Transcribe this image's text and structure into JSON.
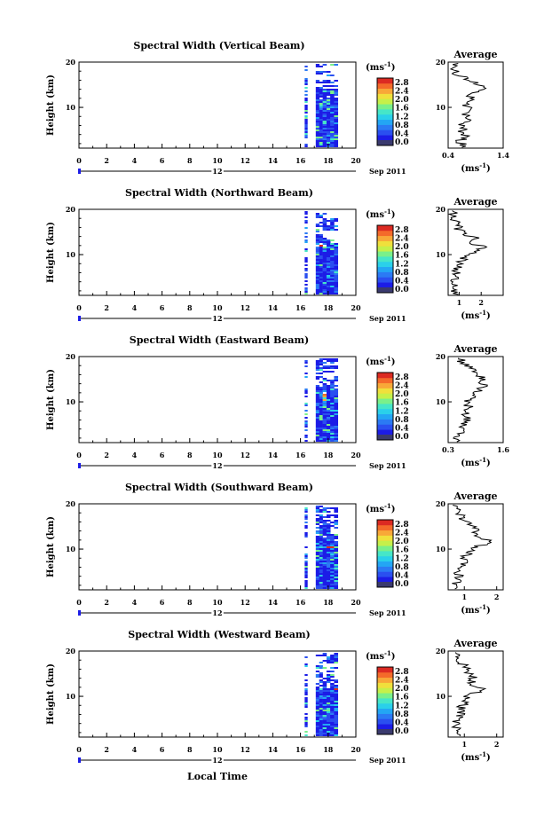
{
  "figure": {
    "xlabel": "Local Time",
    "date_left": "12",
    "date_right": "Sep 2011",
    "avg_title": "Average",
    "unit_label": "(ms",
    "unit_sup": "-1",
    "unit_close": ")",
    "colors": {
      "bottom": "#3a3a6e",
      "colormap": [
        "#1c1ce6",
        "#2a4ff0",
        "#2b7af4",
        "#23a6f4",
        "#2ad0ea",
        "#46e6c8",
        "#7af08a",
        "#c6f04a",
        "#f0e03c",
        "#f8a838",
        "#f46a2a",
        "#dc2a22"
      ]
    }
  },
  "chart_data": [
    {
      "type": "heatmap",
      "title": "Spectral Width (Vertical Beam)",
      "ylabel": "Height (km)",
      "xlim": [
        0,
        20
      ],
      "ylim": [
        1,
        20
      ],
      "xticks": [
        "0",
        "2",
        "4",
        "6",
        "8",
        "10",
        "12",
        "14",
        "16",
        "18",
        "20"
      ],
      "yticks": [
        "20",
        "10"
      ],
      "colorbar_ticks": [
        "2.8",
        "2.4",
        "2.0",
        "1.6",
        "1.2",
        "0.8",
        "0.4",
        "0.0"
      ],
      "data_columns": [
        [
          16.3,
          16.5
        ],
        [
          17.1,
          17.6
        ],
        [
          17.6,
          18.7
        ]
      ],
      "avg_xlim": [
        0.4,
        1.4
      ],
      "avg_xticks": [
        "0.4",
        "1.4"
      ],
      "avg_yticks": [
        "20",
        "10"
      ],
      "average": [
        [
          0.72,
          1.5
        ],
        [
          0.58,
          2.5
        ],
        [
          0.78,
          3.5
        ],
        [
          0.62,
          4.5
        ],
        [
          0.7,
          5.5
        ],
        [
          0.66,
          6.5
        ],
        [
          0.82,
          7.5
        ],
        [
          0.7,
          8.5
        ],
        [
          0.78,
          9.5
        ],
        [
          0.74,
          10.5
        ],
        [
          0.88,
          11.5
        ],
        [
          0.82,
          12.5
        ],
        [
          0.95,
          13.5
        ],
        [
          1.05,
          14.5
        ],
        [
          0.9,
          15.5
        ],
        [
          0.7,
          16.5
        ],
        [
          0.55,
          17.5
        ],
        [
          0.5,
          18.5
        ],
        [
          0.5,
          19.5
        ]
      ]
    },
    {
      "type": "heatmap",
      "title": "Spectral Width (Northward Beam)",
      "ylabel": "Height (km)",
      "xlim": [
        0,
        20
      ],
      "ylim": [
        1,
        20
      ],
      "xticks": [
        "0",
        "2",
        "4",
        "6",
        "8",
        "10",
        "12",
        "14",
        "16",
        "18",
        "20"
      ],
      "yticks": [
        "20",
        "10"
      ],
      "colorbar_ticks": [
        "2.8",
        "2.4",
        "2.0",
        "1.6",
        "1.2",
        "0.8",
        "0.4",
        "0.0"
      ],
      "data_columns": [
        [
          16.3,
          16.5
        ],
        [
          17.1,
          17.6
        ],
        [
          17.6,
          18.7
        ]
      ],
      "avg_xlim": [
        0.5,
        3.0
      ],
      "avg_xticks": [
        "1",
        "2"
      ],
      "avg_yticks": [
        "20",
        "10"
      ],
      "average": [
        [
          0.8,
          1.5
        ],
        [
          0.75,
          2.5
        ],
        [
          0.85,
          3.5
        ],
        [
          0.8,
          4.5
        ],
        [
          0.9,
          5.5
        ],
        [
          0.85,
          6.5
        ],
        [
          1.0,
          7.5
        ],
        [
          1.1,
          8.5
        ],
        [
          1.3,
          9.5
        ],
        [
          1.6,
          10.5
        ],
        [
          2.2,
          11.5
        ],
        [
          1.6,
          12.5
        ],
        [
          1.8,
          13.5
        ],
        [
          1.3,
          14.5
        ],
        [
          1.0,
          15.5
        ],
        [
          0.9,
          16.5
        ],
        [
          0.8,
          17.5
        ],
        [
          0.7,
          18.5
        ],
        [
          0.7,
          19.5
        ]
      ]
    },
    {
      "type": "heatmap",
      "title": "Spectral Width (Eastward Beam)",
      "ylabel": "Height (km)",
      "xlim": [
        0,
        20
      ],
      "ylim": [
        1,
        20
      ],
      "xticks": [
        "0",
        "2",
        "4",
        "6",
        "8",
        "10",
        "12",
        "14",
        "16",
        "18",
        "20"
      ],
      "yticks": [
        "20",
        "10"
      ],
      "colorbar_ticks": [
        "2.8",
        "2.4",
        "2.0",
        "1.6",
        "1.2",
        "0.8",
        "0.4",
        "0.0"
      ],
      "data_columns": [
        [
          16.3,
          16.5
        ],
        [
          17.1,
          17.6
        ],
        [
          17.6,
          18.7
        ]
      ],
      "avg_xlim": [
        0.3,
        1.6
      ],
      "avg_xticks": [
        "0.3",
        "1.6"
      ],
      "avg_yticks": [
        "20",
        "10"
      ],
      "average": [
        [
          0.5,
          1.5
        ],
        [
          0.55,
          2.5
        ],
        [
          0.62,
          3.5
        ],
        [
          0.6,
          4.5
        ],
        [
          0.7,
          5.5
        ],
        [
          0.75,
          6.5
        ],
        [
          0.68,
          7.5
        ],
        [
          0.8,
          8.5
        ],
        [
          0.74,
          9.5
        ],
        [
          0.8,
          10.5
        ],
        [
          0.9,
          11.5
        ],
        [
          1.0,
          12.5
        ],
        [
          1.15,
          13.5
        ],
        [
          1.05,
          14.5
        ],
        [
          1.1,
          15.5
        ],
        [
          0.9,
          16.5
        ],
        [
          0.8,
          17.5
        ],
        [
          0.65,
          18.5
        ],
        [
          0.6,
          19.5
        ]
      ]
    },
    {
      "type": "heatmap",
      "title": "Spectral Width (Southward Beam)",
      "ylabel": "Height (km)",
      "xlim": [
        0,
        20
      ],
      "ylim": [
        1,
        20
      ],
      "xticks": [
        "0",
        "2",
        "4",
        "6",
        "8",
        "10",
        "12",
        "14",
        "16",
        "18",
        "20"
      ],
      "yticks": [
        "20",
        "10"
      ],
      "colorbar_ticks": [
        "2.8",
        "2.4",
        "2.0",
        "1.6",
        "1.2",
        "0.8",
        "0.4",
        "0.0"
      ],
      "data_columns": [
        [
          16.3,
          16.5
        ],
        [
          17.1,
          17.6
        ],
        [
          17.6,
          18.7
        ]
      ],
      "avg_xlim": [
        0.5,
        2.2
      ],
      "avg_xticks": [
        "1",
        "2"
      ],
      "avg_yticks": [
        "20",
        "10"
      ],
      "average": [
        [
          0.75,
          1.5
        ],
        [
          0.72,
          2.5
        ],
        [
          0.85,
          3.5
        ],
        [
          0.8,
          4.5
        ],
        [
          0.85,
          5.5
        ],
        [
          0.95,
          6.5
        ],
        [
          1.0,
          7.5
        ],
        [
          1.05,
          8.5
        ],
        [
          1.2,
          9.5
        ],
        [
          1.3,
          10.5
        ],
        [
          1.9,
          11.5
        ],
        [
          1.5,
          12.5
        ],
        [
          1.4,
          13.5
        ],
        [
          1.3,
          14.5
        ],
        [
          1.1,
          15.5
        ],
        [
          1.0,
          16.5
        ],
        [
          0.9,
          17.5
        ],
        [
          0.8,
          18.5
        ],
        [
          0.75,
          19.5
        ]
      ]
    },
    {
      "type": "heatmap",
      "title": "Spectral Width (Westward Beam)",
      "ylabel": "Height (km)",
      "xlim": [
        0,
        20
      ],
      "ylim": [
        1,
        20
      ],
      "xticks": [
        "0",
        "2",
        "4",
        "6",
        "8",
        "10",
        "12",
        "14",
        "16",
        "18",
        "20"
      ],
      "yticks": [
        "20",
        "10"
      ],
      "colorbar_ticks": [
        "2.8",
        "2.4",
        "2.0",
        "1.6",
        "1.2",
        "0.8",
        "0.4",
        "0.0"
      ],
      "data_columns": [
        [
          16.3,
          16.5
        ],
        [
          17.1,
          17.6
        ],
        [
          17.6,
          18.7
        ]
      ],
      "avg_xlim": [
        0.5,
        2.2
      ],
      "avg_xticks": [
        "1",
        "2"
      ],
      "avg_yticks": [
        "20",
        "10"
      ],
      "average": [
        [
          0.75,
          1.5
        ],
        [
          0.72,
          2.5
        ],
        [
          0.8,
          3.5
        ],
        [
          0.78,
          4.5
        ],
        [
          0.85,
          5.5
        ],
        [
          0.9,
          6.5
        ],
        [
          0.9,
          7.5
        ],
        [
          1.0,
          8.5
        ],
        [
          1.05,
          9.5
        ],
        [
          1.2,
          10.5
        ],
        [
          1.6,
          11.5
        ],
        [
          1.3,
          12.5
        ],
        [
          1.2,
          13.5
        ],
        [
          1.3,
          14.5
        ],
        [
          1.1,
          15.5
        ],
        [
          1.0,
          16.5
        ],
        [
          0.9,
          17.5
        ],
        [
          0.8,
          18.5
        ],
        [
          0.8,
          19.5
        ]
      ]
    }
  ]
}
